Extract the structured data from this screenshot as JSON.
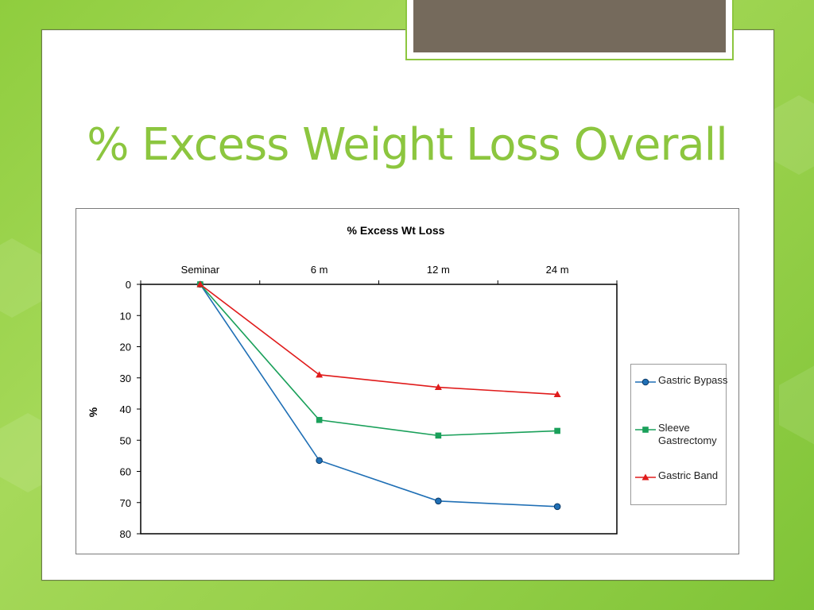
{
  "slide": {
    "title": "% Excess Weight Loss Overall"
  },
  "chart_data": {
    "type": "line",
    "title": "% Excess Wt Loss",
    "xlabel": "",
    "ylabel": "%",
    "categories": [
      "Seminar",
      "6 m",
      "12 m",
      "24 m"
    ],
    "y_axis": {
      "ylim": [
        0,
        80
      ],
      "ticks": [
        0,
        10,
        20,
        30,
        40,
        50,
        60,
        70,
        80
      ],
      "reversed": true
    },
    "x_axis_position": "top",
    "grid": false,
    "legend_position": "right",
    "series": [
      {
        "name": "Gastric Bypass",
        "values": [
          0,
          56.5,
          69.5,
          71.3
        ],
        "color": "#1f6fb5",
        "marker": "circle"
      },
      {
        "name": "Sleeve Gastrectomy",
        "values": [
          0,
          43.5,
          48.5,
          47
        ],
        "color": "#1aa05a",
        "marker": "square"
      },
      {
        "name": "Gastric Band",
        "values": [
          0,
          29,
          33,
          35.3
        ],
        "color": "#e01b1b",
        "marker": "triangle"
      }
    ]
  }
}
